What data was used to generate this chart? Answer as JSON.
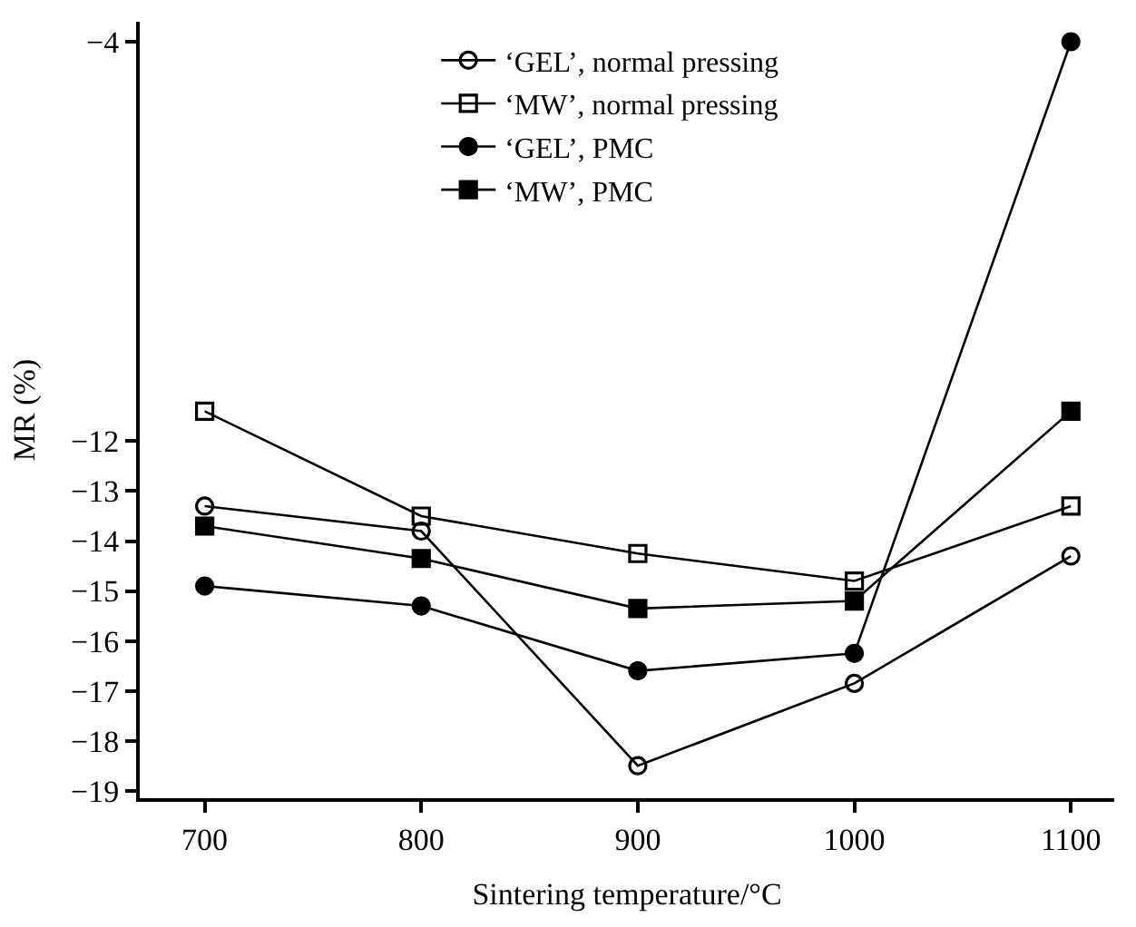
{
  "chart_data": {
    "type": "line",
    "xlabel": "Sintering temperature/°C",
    "ylabel": "MR (%)",
    "x": [
      700,
      800,
      900,
      1000,
      1100
    ],
    "series": [
      {
        "name": "‘GEL’, normal pressing",
        "color": "#000000",
        "marker": "circle-open",
        "values": [
          -13.3,
          -13.8,
          -18.5,
          -16.85,
          -14.3
        ]
      },
      {
        "name": "‘MW’, normal pressing",
        "color": "#000000",
        "marker": "square-open",
        "values": [
          -11.4,
          -13.5,
          -14.25,
          -14.8,
          -13.3
        ]
      },
      {
        "name": "‘GEL’, PMC",
        "color": "#000000",
        "marker": "circle",
        "values": [
          -14.9,
          -15.3,
          -16.6,
          -16.25,
          -4
        ]
      },
      {
        "name": "‘MW’, PMC",
        "color": "#000000",
        "marker": "square",
        "values": [
          -13.7,
          -14.35,
          -15.35,
          -15.2,
          -11.4
        ]
      }
    ],
    "xlim": [
      670,
      1120
    ],
    "xticks": [
      700,
      800,
      900,
      1000,
      1100
    ],
    "ylim": [
      -19.15,
      -3.6
    ],
    "yticks": [
      -19,
      -18,
      -17,
      -16,
      -15,
      -14,
      -13,
      -12,
      -4
    ],
    "legend": "top",
    "line_style": "solid"
  }
}
